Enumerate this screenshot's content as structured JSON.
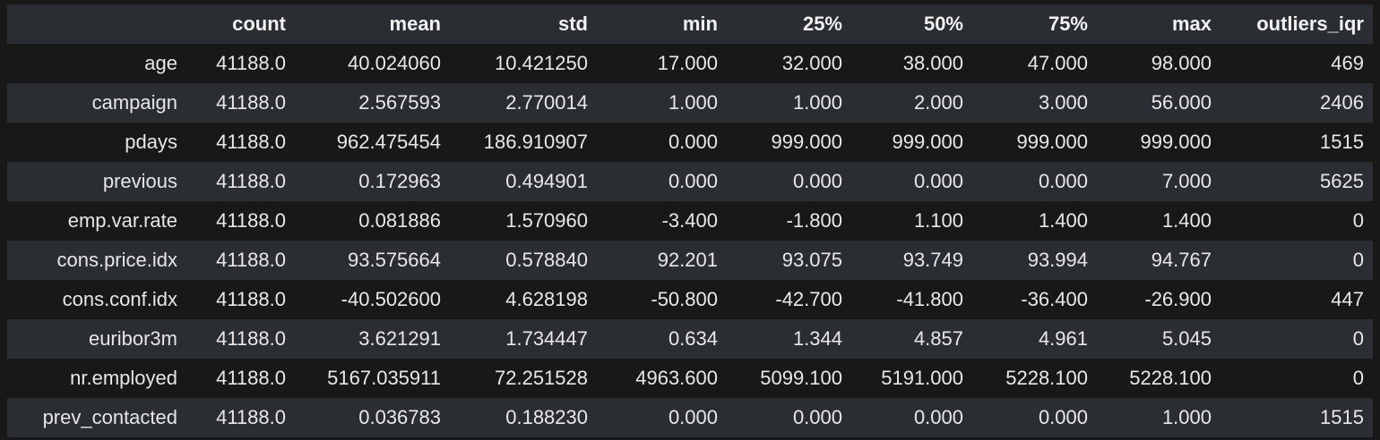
{
  "table": {
    "columns": [
      "",
      "count",
      "mean",
      "std",
      "min",
      "25%",
      "50%",
      "75%",
      "max",
      "outliers_iqr"
    ],
    "rows": [
      {
        "index": "age",
        "cells": [
          "41188.0",
          "40.024060",
          "10.421250",
          "17.000",
          "32.000",
          "38.000",
          "47.000",
          "98.000",
          "469"
        ]
      },
      {
        "index": "campaign",
        "cells": [
          "41188.0",
          "2.567593",
          "2.770014",
          "1.000",
          "1.000",
          "2.000",
          "3.000",
          "56.000",
          "2406"
        ]
      },
      {
        "index": "pdays",
        "cells": [
          "41188.0",
          "962.475454",
          "186.910907",
          "0.000",
          "999.000",
          "999.000",
          "999.000",
          "999.000",
          "1515"
        ]
      },
      {
        "index": "previous",
        "cells": [
          "41188.0",
          "0.172963",
          "0.494901",
          "0.000",
          "0.000",
          "0.000",
          "0.000",
          "7.000",
          "5625"
        ]
      },
      {
        "index": "emp.var.rate",
        "cells": [
          "41188.0",
          "0.081886",
          "1.570960",
          "-3.400",
          "-1.800",
          "1.100",
          "1.400",
          "1.400",
          "0"
        ]
      },
      {
        "index": "cons.price.idx",
        "cells": [
          "41188.0",
          "93.575664",
          "0.578840",
          "92.201",
          "93.075",
          "93.749",
          "93.994",
          "94.767",
          "0"
        ]
      },
      {
        "index": "cons.conf.idx",
        "cells": [
          "41188.0",
          "-40.502600",
          "4.628198",
          "-50.800",
          "-42.700",
          "-41.800",
          "-36.400",
          "-26.900",
          "447"
        ]
      },
      {
        "index": "euribor3m",
        "cells": [
          "41188.0",
          "3.621291",
          "1.734447",
          "0.634",
          "1.344",
          "4.857",
          "4.961",
          "5.045",
          "0"
        ]
      },
      {
        "index": "nr.employed",
        "cells": [
          "41188.0",
          "5167.035911",
          "72.251528",
          "4963.600",
          "5099.100",
          "5191.000",
          "5228.100",
          "5228.100",
          "0"
        ]
      },
      {
        "index": "prev_contacted",
        "cells": [
          "41188.0",
          "0.036783",
          "0.188230",
          "0.000",
          "0.000",
          "0.000",
          "0.000",
          "1.000",
          "1515"
        ]
      }
    ]
  },
  "colors": {
    "background": "#181818",
    "stripe": "#2a2d32",
    "text": "#e8e8e8"
  }
}
